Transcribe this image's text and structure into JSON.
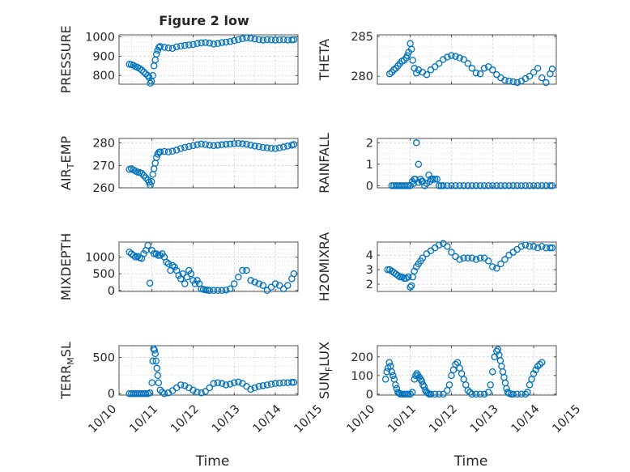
{
  "figure_title": "Figure 2 low",
  "colors": {
    "marker": "#0072bd",
    "axis": "#262626",
    "grid": "#c8c8c8"
  },
  "chart_data": [
    {
      "type": "scatter",
      "title": "Figure 2 low",
      "xlabel": "",
      "ylabel": "PRESSURE",
      "ylabel_sub": "",
      "ylabel_sub_tail": "",
      "xlim": [
        10.2,
        14.55
      ],
      "ylim": [
        755,
        1010
      ],
      "yticks": [
        800,
        900,
        1000
      ],
      "ytick_labels": [
        "800",
        "900",
        "1000"
      ],
      "grid": true,
      "x": [
        10.45,
        10.5,
        10.55,
        10.6,
        10.65,
        10.7,
        10.75,
        10.8,
        10.85,
        10.9,
        10.93,
        10.96,
        10.99,
        11.02,
        11.05,
        11.08,
        11.11,
        11.14,
        11.17,
        11.2,
        11.3,
        11.4,
        11.5,
        11.6,
        11.7,
        11.8,
        11.9,
        12.0,
        12.1,
        12.2,
        12.3,
        12.4,
        12.5,
        12.6,
        12.7,
        12.8,
        12.9,
        13.0,
        13.1,
        13.2,
        13.3,
        13.4,
        13.5,
        13.6,
        13.7,
        13.8,
        13.9,
        14.0,
        14.1,
        14.2,
        14.3,
        14.4,
        14.45
      ],
      "y": [
        858,
        856,
        852,
        846,
        842,
        836,
        828,
        818,
        808,
        800,
        790,
        760,
        770,
        800,
        850,
        880,
        910,
        930,
        945,
        950,
        945,
        942,
        940,
        948,
        952,
        955,
        958,
        960,
        965,
        968,
        970,
        967,
        962,
        965,
        970,
        972,
        975,
        980,
        985,
        990,
        995,
        992,
        988,
        985,
        983,
        985,
        984,
        983,
        984,
        985,
        983,
        984,
        985
      ]
    },
    {
      "type": "scatter",
      "title": "",
      "xlabel": "",
      "ylabel": "THETA",
      "ylabel_sub": "",
      "ylabel_sub_tail": "",
      "xlim": [
        10.2,
        14.55
      ],
      "ylim": [
        279,
        285.2
      ],
      "yticks": [
        280,
        285
      ],
      "ytick_labels": [
        "280",
        "285"
      ],
      "grid": true,
      "x": [
        10.5,
        10.55,
        10.6,
        10.65,
        10.7,
        10.75,
        10.8,
        10.85,
        10.9,
        10.93,
        10.96,
        11.0,
        11.03,
        11.06,
        11.1,
        11.15,
        11.2,
        11.3,
        11.4,
        11.5,
        11.6,
        11.7,
        11.8,
        11.9,
        12.0,
        12.1,
        12.2,
        12.3,
        12.4,
        12.5,
        12.6,
        12.7,
        12.8,
        12.9,
        13.0,
        13.1,
        13.2,
        13.3,
        13.4,
        13.5,
        13.6,
        13.7,
        13.8,
        13.9,
        14.0,
        14.1,
        14.2,
        14.3,
        14.4,
        14.45
      ],
      "y": [
        280.3,
        280.5,
        280.8,
        281.0,
        281.3,
        281.6,
        281.9,
        282.0,
        282.3,
        282.6,
        283.0,
        284.1,
        283.4,
        282.0,
        281.0,
        280.4,
        280.8,
        280.5,
        280.2,
        280.8,
        281.2,
        281.6,
        282.1,
        282.4,
        282.6,
        282.5,
        282.3,
        282.1,
        281.6,
        281.0,
        280.4,
        280.3,
        281.0,
        281.2,
        280.8,
        280.2,
        279.8,
        279.5,
        279.4,
        279.3,
        279.2,
        279.4,
        279.7,
        280.0,
        280.5,
        281.0,
        279.8,
        279.2,
        280.3,
        280.9
      ]
    },
    {
      "type": "scatter",
      "title": "",
      "xlabel": "",
      "ylabel": "AIR",
      "ylabel_sub": "T",
      "ylabel_sub_tail": "EMP",
      "xlim": [
        10.2,
        14.55
      ],
      "ylim": [
        260,
        282
      ],
      "yticks": [
        260,
        270,
        280
      ],
      "ytick_labels": [
        "260",
        "270",
        "280"
      ],
      "grid": true,
      "x": [
        10.45,
        10.5,
        10.55,
        10.6,
        10.65,
        10.7,
        10.75,
        10.8,
        10.85,
        10.9,
        10.93,
        10.96,
        10.99,
        11.02,
        11.05,
        11.08,
        11.11,
        11.14,
        11.17,
        11.2,
        11.3,
        11.4,
        11.5,
        11.6,
        11.7,
        11.8,
        11.9,
        12.0,
        12.1,
        12.2,
        12.3,
        12.4,
        12.5,
        12.6,
        12.7,
        12.8,
        12.9,
        13.0,
        13.1,
        13.2,
        13.3,
        13.4,
        13.5,
        13.6,
        13.7,
        13.8,
        13.9,
        14.0,
        14.1,
        14.2,
        14.3,
        14.4,
        14.45
      ],
      "y": [
        268.2,
        268.5,
        268.0,
        267.5,
        267.0,
        266.8,
        266.5,
        265.5,
        264.5,
        263.5,
        262.5,
        261.2,
        262.8,
        266.0,
        268.5,
        271.0,
        273.5,
        275.0,
        275.8,
        276.0,
        276.2,
        276.0,
        276.3,
        276.8,
        277.5,
        278.0,
        278.4,
        278.8,
        279.2,
        279.5,
        279.3,
        279.0,
        278.8,
        279.0,
        279.2,
        279.4,
        279.5,
        279.7,
        279.8,
        279.6,
        279.4,
        279.0,
        278.6,
        278.3,
        278.0,
        277.8,
        277.6,
        277.5,
        277.8,
        278.2,
        278.6,
        279.0,
        279.3
      ]
    },
    {
      "type": "scatter",
      "title": "",
      "xlabel": "",
      "ylabel": "RAINFALL",
      "ylabel_sub": "",
      "ylabel_sub_tail": "",
      "xlim": [
        10.2,
        14.55
      ],
      "ylim": [
        -0.1,
        2.2
      ],
      "yticks": [
        0,
        1,
        2
      ],
      "ytick_labels": [
        "0",
        "1",
        "2"
      ],
      "grid": true,
      "x": [
        10.55,
        10.6,
        10.65,
        10.7,
        10.75,
        10.8,
        10.85,
        10.9,
        10.95,
        11.0,
        11.05,
        11.1,
        11.15,
        11.2,
        11.25,
        11.3,
        11.35,
        11.4,
        11.45,
        11.5,
        11.55,
        11.6,
        11.65,
        11.7,
        11.75,
        11.8,
        11.9,
        12.0,
        12.1,
        12.2,
        12.3,
        12.4,
        12.5,
        12.6,
        12.7,
        12.8,
        12.9,
        13.0,
        13.1,
        13.2,
        13.3,
        13.4,
        13.5,
        13.6,
        13.7,
        13.8,
        13.9,
        14.0,
        14.1,
        14.2,
        14.3,
        14.4,
        14.45,
        11.08,
        11.12,
        11.2,
        11.28,
        11.48,
        11.55
      ],
      "y": [
        0,
        0,
        0,
        0,
        0,
        0,
        0,
        0,
        0,
        0,
        0.2,
        0.3,
        2.0,
        1.0,
        0.3,
        0.2,
        0,
        0.1,
        0.5,
        0.3,
        0.3,
        0.3,
        0.3,
        0,
        0,
        0,
        0,
        0,
        0,
        0,
        0,
        0,
        0,
        0,
        0,
        0,
        0,
        0,
        0,
        0,
        0,
        0,
        0,
        0,
        0,
        0,
        0,
        0,
        0,
        0,
        0,
        0,
        0,
        0.1,
        0.3,
        0.15,
        0.2,
        0.2,
        0.3
      ]
    },
    {
      "type": "scatter",
      "title": "",
      "xlabel": "",
      "ylabel": "MIXDEPTH",
      "ylabel_sub": "",
      "ylabel_sub_tail": "",
      "xlim": [
        10.2,
        14.55
      ],
      "ylim": [
        -30,
        1450
      ],
      "yticks": [
        0,
        500,
        1000
      ],
      "ytick_labels": [
        "0",
        "500",
        "1000"
      ],
      "grid": true,
      "x": [
        10.45,
        10.5,
        10.55,
        10.6,
        10.65,
        10.7,
        10.75,
        10.8,
        10.85,
        10.9,
        10.95,
        11.0,
        11.05,
        11.1,
        11.15,
        11.2,
        11.25,
        11.3,
        11.35,
        11.4,
        11.45,
        11.5,
        11.55,
        11.6,
        11.65,
        11.7,
        11.75,
        11.8,
        11.85,
        11.9,
        11.95,
        12.0,
        12.05,
        12.1,
        12.15,
        12.2,
        12.25,
        12.3,
        12.35,
        12.4,
        12.5,
        12.6,
        12.7,
        12.8,
        12.9,
        13.0,
        13.1,
        13.2,
        13.3,
        13.4,
        13.5,
        13.6,
        13.7,
        13.8,
        13.9,
        14.0,
        14.1,
        14.2,
        14.3,
        14.4,
        14.45
      ],
      "y": [
        1150,
        1100,
        1050,
        1000,
        1020,
        980,
        960,
        1100,
        1200,
        1350,
        220,
        1200,
        1100,
        1100,
        1050,
        1050,
        1100,
        1000,
        850,
        800,
        600,
        750,
        700,
        600,
        450,
        350,
        500,
        200,
        400,
        600,
        500,
        300,
        200,
        300,
        200,
        50,
        30,
        20,
        10,
        0,
        0,
        0,
        0,
        10,
        50,
        200,
        400,
        600,
        600,
        300,
        250,
        200,
        150,
        0,
        100,
        200,
        150,
        50,
        150,
        350,
        500
      ]
    },
    {
      "type": "scatter",
      "title": "",
      "xlabel": "",
      "ylabel": "H2OMIXRA",
      "ylabel_sub": "",
      "ylabel_sub_tail": "",
      "xlim": [
        10.2,
        14.55
      ],
      "ylim": [
        1.5,
        4.9
      ],
      "yticks": [
        2,
        3,
        4
      ],
      "ytick_labels": [
        "2",
        "3",
        "4"
      ],
      "grid": true,
      "x": [
        10.45,
        10.5,
        10.55,
        10.6,
        10.65,
        10.7,
        10.75,
        10.8,
        10.85,
        10.9,
        10.95,
        11.0,
        11.03,
        11.06,
        11.1,
        11.15,
        11.2,
        11.25,
        11.3,
        11.4,
        11.5,
        11.6,
        11.7,
        11.8,
        11.9,
        12.0,
        12.1,
        12.2,
        12.3,
        12.4,
        12.5,
        12.6,
        12.7,
        12.8,
        12.9,
        13.0,
        13.1,
        13.2,
        13.3,
        13.4,
        13.5,
        13.6,
        13.7,
        13.8,
        13.9,
        14.0,
        14.1,
        14.2,
        14.3,
        14.4,
        14.45
      ],
      "y": [
        3.0,
        3.0,
        2.9,
        2.8,
        2.7,
        2.6,
        2.5,
        2.5,
        2.4,
        2.4,
        2.5,
        1.8,
        1.9,
        2.5,
        2.9,
        3.2,
        3.4,
        3.6,
        3.8,
        4.1,
        4.3,
        4.5,
        4.7,
        4.8,
        4.6,
        4.2,
        3.9,
        3.7,
        3.8,
        3.8,
        3.8,
        3.7,
        3.8,
        3.8,
        3.6,
        3.2,
        3.1,
        3.4,
        3.7,
        4.0,
        4.2,
        4.4,
        4.6,
        4.7,
        4.6,
        4.6,
        4.5,
        4.6,
        4.5,
        4.5,
        4.5
      ]
    },
    {
      "type": "scatter",
      "title": "",
      "xlabel": "Time",
      "ylabel": "TERR",
      "ylabel_sub": "M",
      "ylabel_sub_tail": "SL",
      "xlim": [
        10.2,
        14.55
      ],
      "ylim": [
        -20,
        660
      ],
      "yticks": [
        0,
        500
      ],
      "ytick_labels": [
        "0",
        "500"
      ],
      "grid": true,
      "xticks": [
        10,
        11,
        12,
        13,
        14,
        15
      ],
      "xtick_labels": [
        "10/10",
        "10/11",
        "10/12",
        "10/13",
        "10/14",
        "10/15"
      ],
      "x": [
        10.45,
        10.5,
        10.55,
        10.6,
        10.65,
        10.7,
        10.75,
        10.8,
        10.85,
        10.9,
        10.95,
        11.0,
        11.02,
        11.04,
        11.06,
        11.08,
        11.1,
        11.12,
        11.14,
        11.16,
        11.2,
        11.25,
        11.3,
        11.4,
        11.5,
        11.6,
        11.7,
        11.8,
        11.9,
        12.0,
        12.1,
        12.2,
        12.3,
        12.4,
        12.5,
        12.6,
        12.7,
        12.8,
        12.9,
        13.0,
        13.1,
        13.2,
        13.3,
        13.4,
        13.5,
        13.6,
        13.7,
        13.8,
        13.9,
        14.0,
        14.1,
        14.2,
        14.3,
        14.4,
        14.45
      ],
      "y": [
        0,
        0,
        0,
        0,
        0,
        0,
        0,
        0,
        0,
        0,
        10,
        150,
        450,
        620,
        600,
        550,
        450,
        350,
        250,
        150,
        50,
        20,
        0,
        10,
        40,
        80,
        120,
        110,
        80,
        50,
        20,
        10,
        30,
        80,
        140,
        150,
        140,
        120,
        130,
        150,
        160,
        140,
        100,
        60,
        80,
        100,
        110,
        120,
        130,
        140,
        145,
        150,
        150,
        155,
        155
      ]
    },
    {
      "type": "scatter",
      "title": "",
      "xlabel": "Time",
      "ylabel": "SUN",
      "ylabel_sub": "F",
      "ylabel_sub_tail": "LUX",
      "xlim": [
        10.2,
        14.55
      ],
      "ylim": [
        -5,
        260
      ],
      "yticks": [
        0,
        100,
        200
      ],
      "ytick_labels": [
        "0",
        "100",
        "200"
      ],
      "grid": true,
      "xticks": [
        10,
        11,
        12,
        13,
        14,
        15
      ],
      "xtick_labels": [
        "10/10",
        "10/11",
        "10/12",
        "10/13",
        "10/14",
        "10/15"
      ],
      "x": [
        10.4,
        10.43,
        10.46,
        10.49,
        10.52,
        10.55,
        10.58,
        10.61,
        10.64,
        10.67,
        10.7,
        10.73,
        10.76,
        10.8,
        10.85,
        10.9,
        10.95,
        11.0,
        11.05,
        11.1,
        11.13,
        11.16,
        11.19,
        11.22,
        11.25,
        11.28,
        11.31,
        11.34,
        11.37,
        11.4,
        11.43,
        11.46,
        11.5,
        11.6,
        11.7,
        11.8,
        11.9,
        11.95,
        12.0,
        12.05,
        12.1,
        12.15,
        12.2,
        12.25,
        12.3,
        12.35,
        12.4,
        12.45,
        12.5,
        12.6,
        12.7,
        12.8,
        12.9,
        12.95,
        13.0,
        13.05,
        13.1,
        13.13,
        13.16,
        13.19,
        13.22,
        13.25,
        13.28,
        13.31,
        13.34,
        13.37,
        13.4,
        13.45,
        13.5,
        13.6,
        13.7,
        13.8,
        13.85,
        13.9,
        13.95,
        14.0,
        14.05,
        14.1,
        14.15,
        14.2
      ],
      "y": [
        80,
        120,
        140,
        170,
        150,
        120,
        100,
        80,
        50,
        30,
        10,
        5,
        0,
        0,
        0,
        0,
        0,
        0,
        10,
        80,
        100,
        110,
        100,
        90,
        80,
        70,
        50,
        40,
        20,
        10,
        5,
        0,
        0,
        0,
        0,
        0,
        20,
        50,
        100,
        130,
        160,
        170,
        140,
        110,
        80,
        50,
        20,
        10,
        0,
        0,
        0,
        0,
        10,
        50,
        120,
        200,
        230,
        240,
        210,
        180,
        150,
        120,
        90,
        60,
        30,
        10,
        5,
        0,
        0,
        0,
        0,
        0,
        10,
        50,
        80,
        110,
        130,
        150,
        160,
        170
      ]
    }
  ]
}
